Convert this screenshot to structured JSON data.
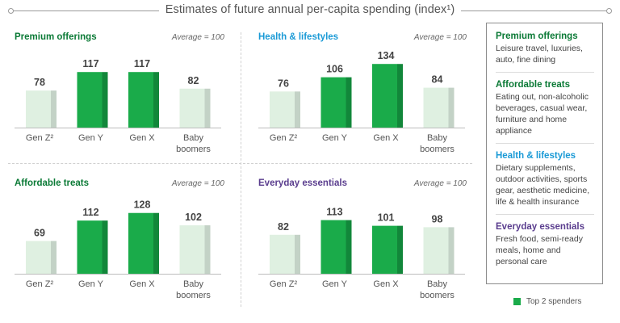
{
  "title": "Estimates of future annual per-capita spending (index¹)",
  "colors": {
    "green": "#0b7a36",
    "blue": "#1a9ad6",
    "purple": "#5a3d8e",
    "top_bar": "#1aab4a",
    "top_bar_side": "#12873a",
    "other_bar": "#dff0e1",
    "other_bar_side": "#c3d2c6"
  },
  "legend": {
    "items": [
      {
        "title": "Premium offerings",
        "desc": "Leisure travel, luxuries, auto, fine dining",
        "color": "#0b7a36"
      },
      {
        "title": "Affordable treats",
        "desc": "Eating out, non-alcoholic beverages, casual wear, furniture and home appliance",
        "color": "#0b7a36"
      },
      {
        "title": "Health & lifestyles",
        "desc": "Dietary supplements, outdoor activities, sports gear, aesthetic medicine, life & health insurance",
        "color": "#1a9ad6"
      },
      {
        "title": "Everyday essentials",
        "desc": "Fresh food, semi-ready meals, home and personal care",
        "color": "#5a3d8e"
      }
    ],
    "key_label": "Top 2 spenders"
  },
  "chart_data": [
    {
      "type": "bar",
      "title": "Premium offerings",
      "title_color": "#0b7a36",
      "note": "Average = 100",
      "categories": [
        "Gen Z²",
        "Gen Y",
        "Gen X",
        "Baby boomers"
      ],
      "values": [
        78,
        117,
        117,
        82
      ],
      "top_spenders": [
        1,
        2
      ]
    },
    {
      "type": "bar",
      "title": "Health & lifestyles",
      "title_color": "#1a9ad6",
      "note": "Average = 100",
      "categories": [
        "Gen Z²",
        "Gen Y",
        "Gen X",
        "Baby boomers"
      ],
      "values": [
        76,
        106,
        134,
        84
      ],
      "top_spenders": [
        1,
        2
      ]
    },
    {
      "type": "bar",
      "title": "Affordable treats",
      "title_color": "#0b7a36",
      "note": "Average = 100",
      "categories": [
        "Gen Z²",
        "Gen Y",
        "Gen X",
        "Baby boomers"
      ],
      "values": [
        69,
        112,
        128,
        102
      ],
      "top_spenders": [
        1,
        2
      ]
    },
    {
      "type": "bar",
      "title": "Everyday essentials",
      "title_color": "#5a3d8e",
      "note": "Average = 100",
      "categories": [
        "Gen Z²",
        "Gen Y",
        "Gen X",
        "Baby boomers"
      ],
      "values": [
        82,
        113,
        101,
        98
      ],
      "top_spenders": [
        1,
        2
      ]
    }
  ]
}
